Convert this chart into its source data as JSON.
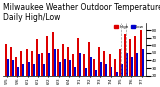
{
  "title": "Milwaukee Weather Outdoor Temperature\nDaily High/Low",
  "high_values": [
    62,
    58,
    45,
    52,
    55,
    52,
    68,
    50,
    72,
    78,
    55,
    62,
    58,
    48,
    70,
    48,
    65,
    42,
    58,
    52,
    48,
    42,
    55,
    75,
    68,
    72,
    80
  ],
  "low_values": [
    42,
    40,
    32,
    35,
    38,
    36,
    48,
    35,
    50,
    55,
    38,
    42,
    40,
    32,
    50,
    30,
    45,
    28,
    38,
    36,
    32,
    25,
    35,
    50,
    45,
    50,
    55
  ],
  "x_labels": [
    "5/5",
    "5/6",
    "6/1",
    "6/1",
    "6/2",
    "6/2",
    "6/3",
    "6/4",
    "7/1",
    "7/2",
    "7/5",
    "7/5",
    "7/5",
    "7/5",
    "7/5",
    "7/5",
    "7/5",
    "7/5",
    "7/5",
    "7/5",
    "7/5",
    "7/5",
    "7/5",
    "7/5",
    "7/5",
    "7/5",
    "7/5"
  ],
  "high_color": "#dd0000",
  "low_color": "#0000cc",
  "dashed_lines": [
    22,
    23
  ],
  "ylabel": "",
  "ylim": [
    20,
    90
  ],
  "yticks": [
    20,
    30,
    40,
    50,
    60,
    70,
    80
  ],
  "background_color": "#ffffff",
  "title_fontsize": 5.5,
  "bar_width": 0.38,
  "legend_labels": [
    "High",
    "Low"
  ]
}
